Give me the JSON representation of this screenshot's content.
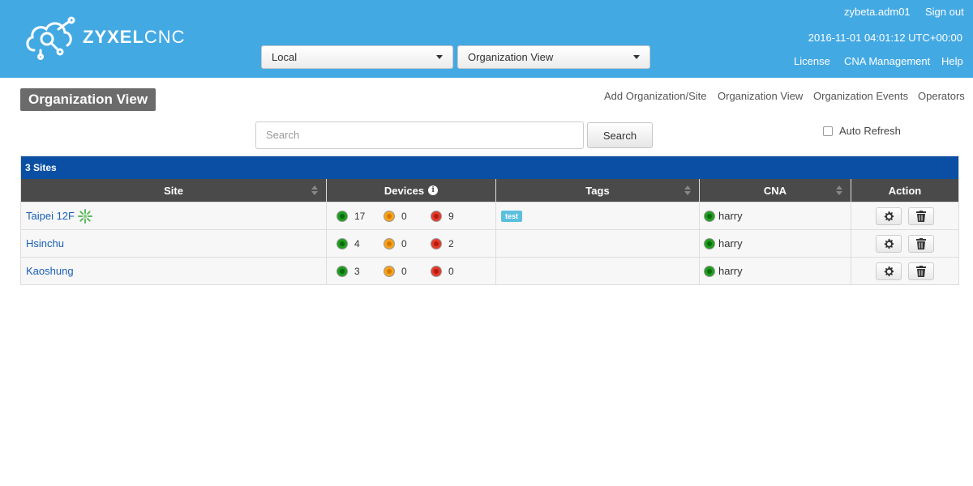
{
  "header": {
    "logo": {
      "brand_bold": "ZYXEL",
      "brand_light": "CNC"
    },
    "site_select": {
      "value": "Local"
    },
    "view_select": {
      "value": "Organization View"
    },
    "user": "zybeta.adm01",
    "sign_out": "Sign out",
    "datetime": "2016-11-01 04:01:12 UTC+00:00",
    "links": {
      "license": "License",
      "cna_management": "CNA Management",
      "help": "Help"
    }
  },
  "page": {
    "title": "Organization View",
    "nav": {
      "add_org_site": "Add Organization/Site",
      "org_view": "Organization View",
      "org_events": "Organization Events",
      "operators": "Operators"
    },
    "search": {
      "placeholder": "Search",
      "button": "Search"
    },
    "auto_refresh": {
      "label": "Auto Refresh",
      "checked": false
    }
  },
  "table": {
    "caption": "3 Sites",
    "columns": {
      "site": "Site",
      "devices": "Devices",
      "tags": "Tags",
      "cna": "CNA",
      "action": "Action"
    },
    "rows": [
      {
        "site": "Taipei 12F",
        "has_badge": true,
        "online": "17",
        "warning": "0",
        "offline": "9",
        "tag": "test",
        "cna": "harry"
      },
      {
        "site": "Hsinchu",
        "has_badge": false,
        "online": "4",
        "warning": "0",
        "offline": "2",
        "tag": "",
        "cna": "harry"
      },
      {
        "site": "Kaoshung",
        "has_badge": false,
        "online": "3",
        "warning": "0",
        "offline": "0",
        "tag": "",
        "cna": "harry"
      }
    ]
  },
  "colors": {
    "header_bg": "#43a9e3",
    "caption_bg": "#0a4fa3",
    "table_head_bg": "#4a4a4a",
    "link": "#1a5fb4",
    "tag_bg": "#5bc0de"
  },
  "icons": [
    "cloud-logo-icon",
    "caret-down-icon",
    "sort-icon",
    "info-icon",
    "gear-icon",
    "trash-icon",
    "status-dot-icon",
    "site-badge-icon"
  ]
}
